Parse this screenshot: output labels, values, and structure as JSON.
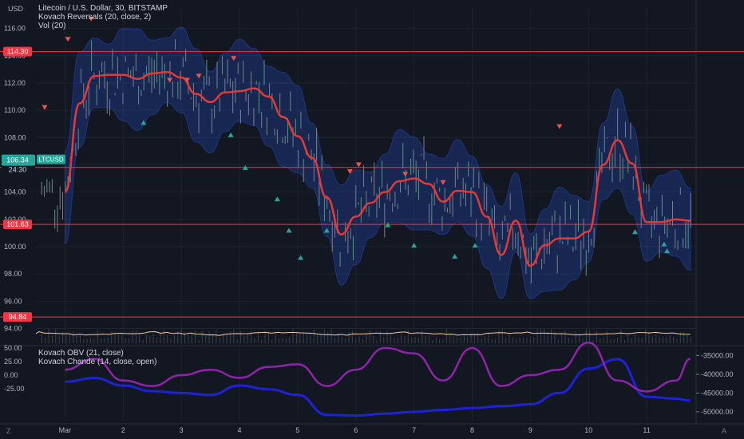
{
  "header": {
    "currency": "USD",
    "symbol_title": "Litecoin / U.S. Dollar, 30, BITSTAMP",
    "indicator_1": "Kovach Reversals (20, close, 2)",
    "indicator_2": "Vol (20)"
  },
  "lower_pane": {
    "indicator_1": "Kovach OBV (21, close)",
    "indicator_2": "Kovach Chande (14, close, open)"
  },
  "colors": {
    "background": "#131722",
    "price_line": "#e53935",
    "band_fill": "#2962ff",
    "obv_line": "#1e22d6",
    "chande_line": "#8e24aa",
    "up_marker": "#26a69a",
    "down_marker": "#ef5350",
    "level_line": "#f23645",
    "volume_line": "#f3c9a1"
  },
  "price_label": {
    "symbol": "LTCUSD",
    "price": "106.34",
    "countdown": "24:30"
  },
  "level_labels": [
    "114.30",
    "105.81",
    "101.63",
    "94.84"
  ],
  "footer": {
    "left_icon": "Z",
    "right_icon": "A"
  },
  "chart_data": [
    {
      "type": "line",
      "title": "Litecoin / U.S. Dollar, 30, BITSTAMP",
      "ylabel": "USD",
      "ylim": [
        93.0,
        118.0
      ],
      "y_ticks": [
        "116.00",
        "114.00",
        "112.00",
        "110.00",
        "108.00",
        "106.00",
        "104.00",
        "102.00",
        "100.00",
        "98.00",
        "96.00",
        "94.00"
      ],
      "x_ticks": [
        "Mar",
        "2",
        "3",
        "4",
        "5",
        "6",
        "7",
        "8",
        "9",
        "10",
        "11"
      ],
      "horizontal_levels": [
        114.3,
        105.81,
        101.63,
        94.84
      ],
      "series": [
        {
          "name": "Kovach Reversals (20, close, 2)",
          "x": [
            0,
            0.25,
            0.5,
            0.75,
            1,
            1.25,
            1.5,
            1.75,
            2,
            2.25,
            2.5,
            2.75,
            3,
            3.25,
            3.5,
            3.75,
            4,
            4.25,
            4.5,
            4.75,
            5,
            5.25,
            5.5,
            5.75,
            6,
            6.25,
            6.5,
            6.75,
            7,
            7.25,
            7.5,
            7.75,
            8,
            8.25,
            8.5,
            8.75,
            9,
            9.25,
            9.5,
            9.75,
            10,
            10.25,
            10.5,
            10.75
          ],
          "y": [
            104.0,
            110.5,
            112.5,
            112.6,
            112.6,
            112.3,
            112.7,
            112.8,
            112.4,
            111.2,
            110.6,
            111.3,
            111.4,
            111.6,
            111.0,
            109.5,
            108.1,
            106.5,
            103.6,
            100.9,
            102.2,
            103.2,
            104.0,
            104.8,
            105.0,
            104.6,
            103.3,
            104.1,
            104.0,
            102.2,
            99.4,
            101.9,
            98.6,
            100.1,
            100.6,
            100.6,
            101.1,
            106.0,
            107.8,
            106.1,
            101.8,
            101.8,
            102.0,
            101.9
          ]
        }
      ],
      "price": {
        "current": 106.34
      }
    },
    {
      "type": "line",
      "title": "Kovach OBV (21, close) / Kovach Chande (14, close, open)",
      "left_axis_ticks": [
        "50.00",
        "25.00",
        "0.00",
        "-25.00"
      ],
      "right_axis_ticks": [
        "-35000.00",
        "-40000.00",
        "-45000.00",
        "-50000.00"
      ],
      "series": [
        {
          "name": "Kovach OBV (21, close)",
          "x": [
            0,
            0.5,
            1,
            1.5,
            2,
            2.5,
            3,
            3.5,
            4,
            4.5,
            5,
            5.5,
            6,
            6.5,
            7,
            7.5,
            8,
            8.5,
            9,
            9.5,
            10,
            10.5,
            10.75
          ],
          "y": [
            -42000,
            -41000,
            -43000,
            -44500,
            -45000,
            -45500,
            -43000,
            -44000,
            -45500,
            -50800,
            -51000,
            -50500,
            -50000,
            -49500,
            -49000,
            -48500,
            -48000,
            -45000,
            -38500,
            -36000,
            -46000,
            -46500,
            -47000
          ]
        },
        {
          "name": "Kovach Chande (14, close, open)",
          "x": [
            0,
            0.5,
            1,
            1.5,
            2,
            2.5,
            3,
            3.5,
            4,
            4.5,
            5,
            5.5,
            6,
            6.5,
            7,
            7.5,
            8,
            8.5,
            9,
            9.5,
            10,
            10.5,
            10.75
          ],
          "y": [
            10,
            30,
            -10,
            -20,
            0,
            10,
            -5,
            15,
            20,
            -20,
            10,
            50,
            40,
            -10,
            50,
            -20,
            0,
            10,
            60,
            -10,
            -30,
            -10,
            30
          ]
        }
      ]
    }
  ]
}
